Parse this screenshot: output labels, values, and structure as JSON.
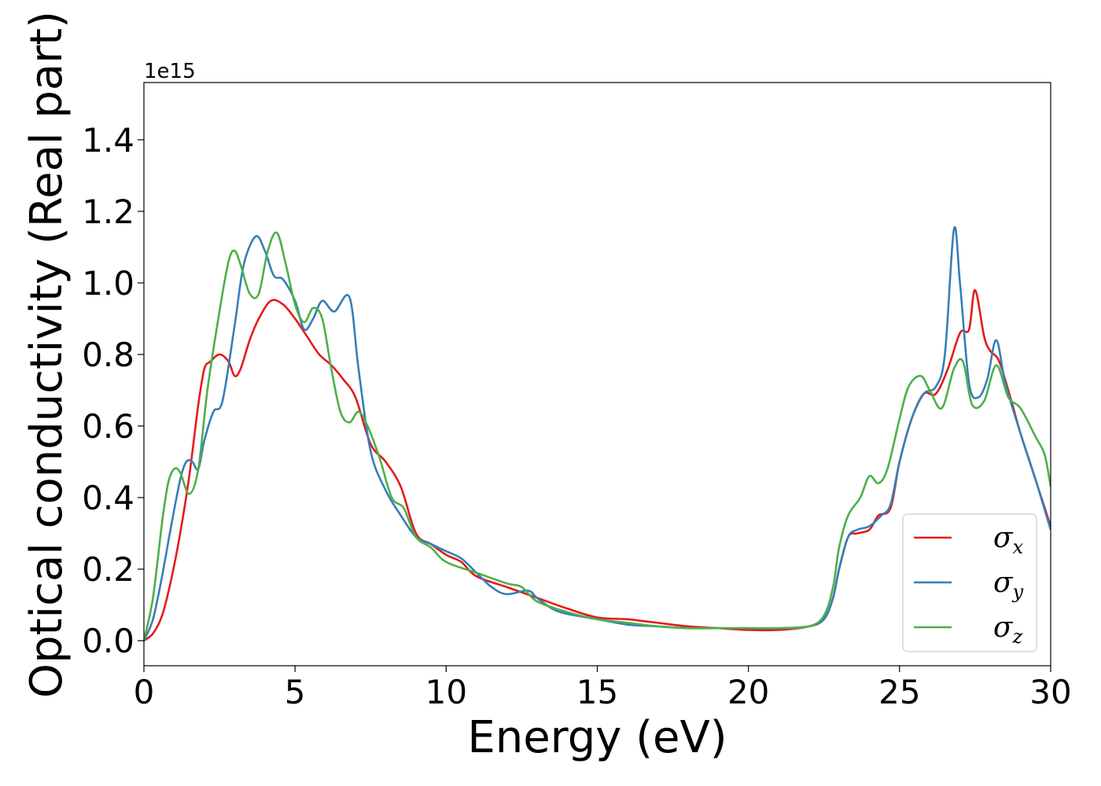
{
  "chart_data": {
    "type": "line",
    "xlabel": "Energy (eV)",
    "ylabel": "Optical conductivity (Real part)",
    "y_offset_label": "1e15",
    "y_scale": 1000000000000000.0,
    "xlim": [
      0,
      30
    ],
    "ylim": [
      -0.07,
      1.56
    ],
    "xticks": [
      0,
      5,
      10,
      15,
      20,
      25,
      30
    ],
    "xtick_labels": [
      "0",
      "5",
      "10",
      "15",
      "20",
      "25",
      "30"
    ],
    "yticks": [
      0.0,
      0.2,
      0.4,
      0.6,
      0.8,
      1.0,
      1.2,
      1.4
    ],
    "ytick_labels": [
      "0.0",
      "0.2",
      "0.4",
      "0.6",
      "0.8",
      "1.0",
      "1.2",
      "1.4"
    ],
    "grid": false,
    "legend_position": "bottom-right",
    "series": [
      {
        "name": "σx",
        "symbol": "σ",
        "subscript": "x",
        "color": "#e41a1c",
        "x": [
          0,
          0.3,
          0.6,
          0.9,
          1.2,
          1.5,
          1.8,
          2.0,
          2.2,
          2.5,
          2.8,
          3.0,
          3.2,
          3.5,
          3.8,
          4.2,
          4.6,
          5.0,
          5.4,
          5.8,
          6.2,
          6.6,
          7.0,
          7.5,
          8.0,
          8.5,
          9.0,
          9.5,
          10.0,
          10.5,
          11.0,
          12.0,
          13.0,
          14.0,
          15.0,
          16.0,
          16.5,
          17.0,
          18.0,
          19.0,
          20.0,
          21.0,
          22.0,
          22.5,
          22.8,
          23.0,
          23.3,
          23.6,
          24.0,
          24.3,
          24.7,
          25.0,
          25.4,
          25.8,
          26.2,
          26.6,
          27.0,
          27.3,
          27.5,
          27.8,
          28.0,
          28.3,
          28.7,
          29.0,
          29.5,
          30.0
        ],
        "y": [
          0,
          0.02,
          0.07,
          0.17,
          0.3,
          0.46,
          0.66,
          0.76,
          0.78,
          0.8,
          0.78,
          0.74,
          0.76,
          0.84,
          0.9,
          0.95,
          0.94,
          0.9,
          0.85,
          0.8,
          0.77,
          0.73,
          0.68,
          0.55,
          0.5,
          0.43,
          0.3,
          0.27,
          0.24,
          0.22,
          0.18,
          0.15,
          0.12,
          0.09,
          0.065,
          0.06,
          0.055,
          0.05,
          0.04,
          0.035,
          0.03,
          0.03,
          0.04,
          0.06,
          0.12,
          0.2,
          0.29,
          0.3,
          0.31,
          0.35,
          0.37,
          0.5,
          0.62,
          0.69,
          0.69,
          0.76,
          0.86,
          0.87,
          0.98,
          0.85,
          0.81,
          0.78,
          0.67,
          0.58,
          0.45,
          0.32
        ]
      },
      {
        "name": "σy",
        "symbol": "σ",
        "subscript": "y",
        "color": "#377eb8",
        "x": [
          0,
          0.3,
          0.6,
          0.9,
          1.2,
          1.4,
          1.6,
          1.8,
          2.0,
          2.3,
          2.6,
          3.0,
          3.3,
          3.7,
          4.0,
          4.3,
          4.6,
          5.0,
          5.3,
          5.6,
          5.9,
          6.3,
          6.8,
          7.1,
          7.5,
          8.0,
          8.5,
          9.0,
          9.5,
          10.0,
          10.5,
          11.0,
          11.5,
          12.0,
          12.7,
          13.0,
          13.5,
          14.0,
          15.0,
          16.0,
          17.0,
          18.0,
          19.0,
          20.0,
          21.0,
          22.0,
          22.5,
          22.8,
          23.0,
          23.3,
          23.6,
          24.0,
          24.4,
          24.7,
          25.0,
          25.4,
          25.8,
          26.2,
          26.5,
          26.8,
          27.0,
          27.3,
          27.6,
          27.9,
          28.2,
          28.5,
          29.0,
          29.5,
          30.0
        ],
        "y": [
          0,
          0.06,
          0.18,
          0.32,
          0.45,
          0.5,
          0.5,
          0.48,
          0.56,
          0.64,
          0.67,
          0.88,
          1.05,
          1.13,
          1.09,
          1.02,
          1.01,
          0.95,
          0.87,
          0.9,
          0.95,
          0.92,
          0.96,
          0.76,
          0.53,
          0.42,
          0.35,
          0.29,
          0.27,
          0.25,
          0.23,
          0.19,
          0.15,
          0.13,
          0.14,
          0.12,
          0.09,
          0.075,
          0.06,
          0.045,
          0.04,
          0.035,
          0.035,
          0.035,
          0.035,
          0.04,
          0.06,
          0.12,
          0.2,
          0.29,
          0.31,
          0.32,
          0.35,
          0.38,
          0.5,
          0.62,
          0.69,
          0.71,
          0.8,
          1.15,
          1.0,
          0.72,
          0.68,
          0.73,
          0.84,
          0.72,
          0.58,
          0.45,
          0.31
        ]
      },
      {
        "name": "σz",
        "symbol": "σ",
        "subscript": "z",
        "color": "#4daf4a",
        "x": [
          0,
          0.3,
          0.6,
          0.8,
          1.0,
          1.2,
          1.5,
          1.8,
          2.1,
          2.5,
          2.8,
          3.0,
          3.2,
          3.5,
          3.8,
          4.1,
          4.4,
          4.7,
          5.0,
          5.3,
          5.6,
          5.9,
          6.2,
          6.5,
          6.8,
          7.1,
          7.4,
          7.8,
          8.2,
          8.6,
          9.0,
          9.5,
          10.0,
          11.0,
          12.0,
          12.5,
          13.0,
          14.0,
          15.0,
          16.0,
          17.0,
          18.0,
          19.0,
          20.0,
          21.0,
          22.0,
          22.5,
          22.8,
          23.0,
          23.3,
          23.7,
          24.0,
          24.3,
          24.6,
          25.0,
          25.3,
          25.7,
          26.0,
          26.4,
          26.8,
          27.1,
          27.4,
          27.8,
          28.2,
          28.6,
          29.0,
          29.5,
          29.8,
          30.0
        ],
        "y": [
          0,
          0.12,
          0.33,
          0.44,
          0.48,
          0.47,
          0.41,
          0.48,
          0.7,
          0.92,
          1.06,
          1.09,
          1.05,
          0.97,
          0.97,
          1.09,
          1.14,
          1.05,
          0.94,
          0.89,
          0.93,
          0.9,
          0.76,
          0.64,
          0.61,
          0.64,
          0.6,
          0.51,
          0.4,
          0.37,
          0.29,
          0.26,
          0.22,
          0.19,
          0.16,
          0.15,
          0.11,
          0.08,
          0.06,
          0.05,
          0.04,
          0.035,
          0.035,
          0.035,
          0.035,
          0.04,
          0.07,
          0.15,
          0.26,
          0.35,
          0.4,
          0.46,
          0.44,
          0.48,
          0.62,
          0.71,
          0.74,
          0.7,
          0.65,
          0.76,
          0.78,
          0.66,
          0.67,
          0.77,
          0.68,
          0.65,
          0.57,
          0.52,
          0.43
        ]
      }
    ]
  }
}
